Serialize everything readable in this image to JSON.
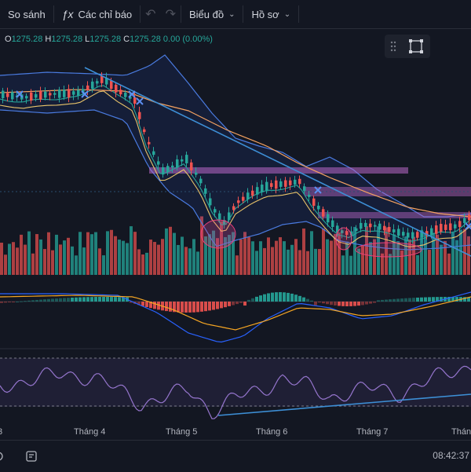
{
  "toolbar": {
    "compare_label": "So sánh",
    "indicators_label": "Các chỉ báo",
    "chart_label": "Biểu đồ",
    "profile_label": "Hồ sơ"
  },
  "ohlc": {
    "o_label": "O",
    "o": "1275.28",
    "h_label": "H",
    "h": "1275.28",
    "l_label": "L",
    "l": "1275.28",
    "c_label": "C",
    "c": "1275.28",
    "change": "0.00 (0.00%)"
  },
  "xaxis": {
    "labels": [
      "3",
      "Tháng 4",
      "Tháng 5",
      "Tháng 6",
      "Tháng 7",
      "Thán"
    ]
  },
  "status": {
    "time": "08:42:37"
  },
  "colors": {
    "up": "#26a69a",
    "down": "#ef5350",
    "bg": "#131722",
    "rsi": "#7e57c2",
    "bb": "#2962ff"
  },
  "icons": {
    "indicators": "fx-icon",
    "undo": "undo-icon",
    "redo": "redo-icon",
    "layout": "layout-icon",
    "fullscreen": "fullscreen-icon",
    "replay": "replay-icon"
  }
}
